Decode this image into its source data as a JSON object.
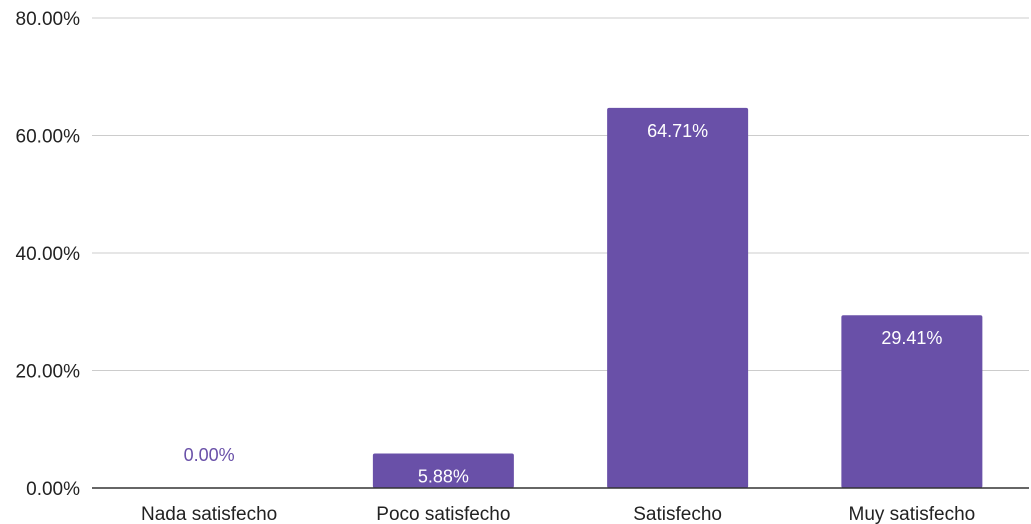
{
  "chart_data": {
    "type": "bar",
    "categories": [
      "Nada satisfecho",
      "Poco satisfecho",
      "Satisfecho",
      "Muy satisfecho"
    ],
    "values": [
      0.0,
      5.88,
      64.71,
      29.41
    ],
    "data_labels": [
      "0.00%",
      "5.88%",
      "64.71%",
      "29.41%"
    ],
    "ylim": [
      0,
      80
    ],
    "y_ticks": [
      0,
      20,
      40,
      60,
      80
    ],
    "y_tick_labels": [
      "0.00%",
      "20.00%",
      "40.00%",
      "60.00%",
      "80.00%"
    ],
    "title": "",
    "xlabel": "",
    "ylabel": "",
    "grid": true,
    "legend": "none",
    "colors": {
      "bar": "#6950a8",
      "label_inside": "#ffffff",
      "label_outside": "#6950a8",
      "grid": "#cccccc",
      "axis": "#333333"
    }
  }
}
